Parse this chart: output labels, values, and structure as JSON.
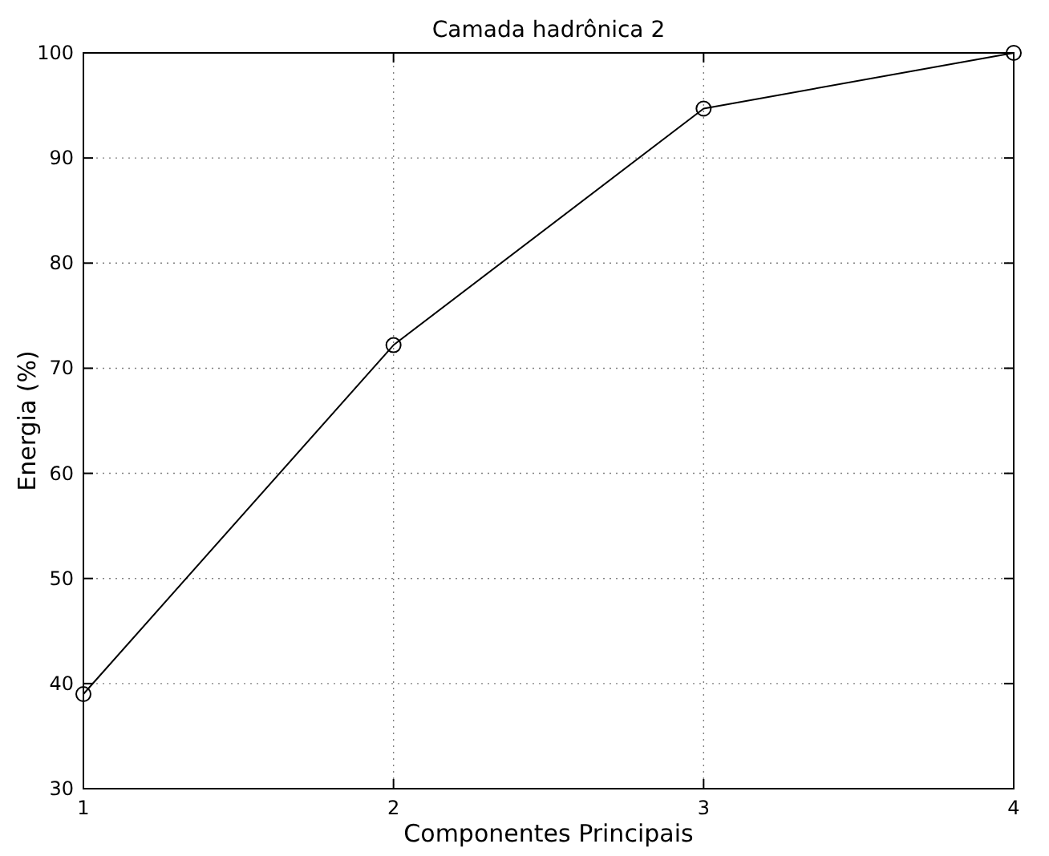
{
  "chart_data": {
    "type": "line",
    "title": "Camada hadrônica 2",
    "xlabel": "Componentes Principais",
    "ylabel": "Energia (%)",
    "x": [
      1,
      2,
      3,
      4
    ],
    "series": [
      {
        "color": "#000000",
        "values": [
          39.0,
          72.2,
          94.7,
          100
        ]
      }
    ],
    "xlim": [
      1,
      4
    ],
    "xticks": [
      1,
      2,
      3,
      4
    ],
    "ylim": [
      30,
      100
    ],
    "yticks": [
      30,
      40,
      50,
      60,
      70,
      80,
      90,
      100
    ],
    "grid": true,
    "marker": "circle",
    "line_style": "solid"
  }
}
